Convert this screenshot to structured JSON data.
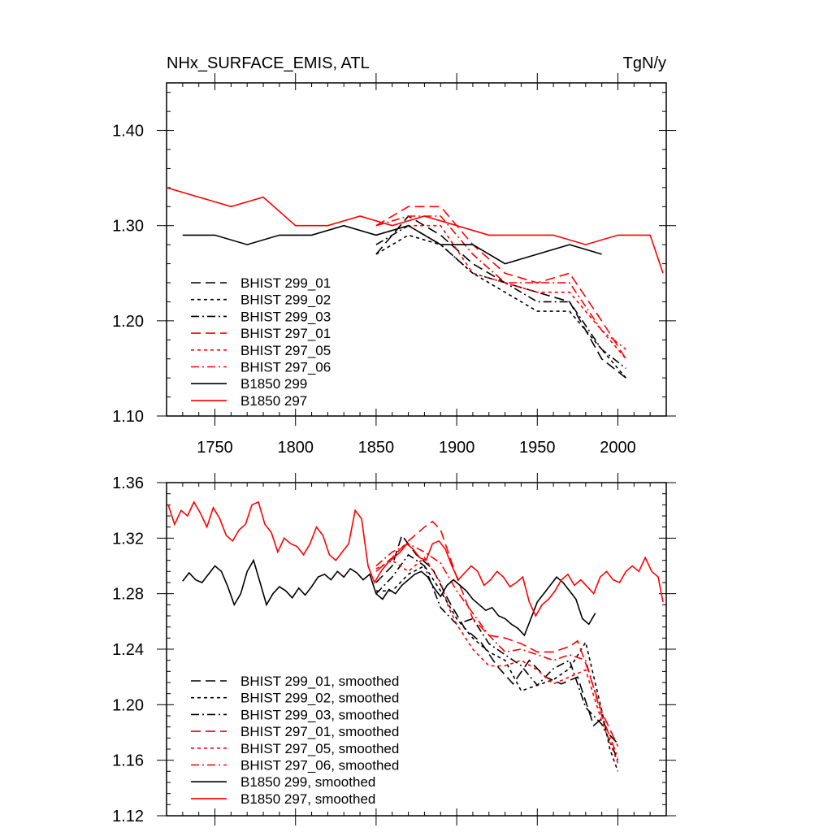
{
  "chart_data": [
    {
      "type": "line",
      "title_left": "NHx_SURFACE_EMIS, ATL",
      "title_right": "TgN/y",
      "xlim": [
        1720,
        2030
      ],
      "ylim": [
        1.1,
        1.45
      ],
      "xticks": [
        1750,
        1800,
        1850,
        1900,
        1950,
        2000
      ],
      "xtick_labels": [
        "1750",
        "1800",
        "1850",
        "1900",
        "1950",
        "2000"
      ],
      "yticks": [
        1.1,
        1.2,
        1.3,
        1.4
      ],
      "ytick_labels": [
        "1.10",
        "1.20",
        "1.30",
        "1.40"
      ],
      "legend": [
        {
          "label": "BHIST 299_01",
          "color": "#000000",
          "dash": "long"
        },
        {
          "label": "BHIST 299_02",
          "color": "#000000",
          "dash": "short"
        },
        {
          "label": "BHIST 299_03",
          "color": "#000000",
          "dash": "dashdot"
        },
        {
          "label": "BHIST 297_01",
          "color": "#ff0000",
          "dash": "long"
        },
        {
          "label": "BHIST 297_05",
          "color": "#ff0000",
          "dash": "short"
        },
        {
          "label": "BHIST 297_06",
          "color": "#ff0000",
          "dash": "dashdot"
        },
        {
          "label": "B1850 299",
          "color": "#000000",
          "dash": "solid"
        },
        {
          "label": "B1850 297",
          "color": "#ff0000",
          "dash": "solid"
        }
      ],
      "series": [
        {
          "name": "BHIST 299_01",
          "color": "#000000",
          "dash": "long",
          "x": [
            1850,
            1870,
            1890,
            1910,
            1930,
            1950,
            1970,
            1990,
            2005
          ],
          "y": [
            1.27,
            1.31,
            1.29,
            1.26,
            1.24,
            1.23,
            1.22,
            1.16,
            1.14
          ]
        },
        {
          "name": "BHIST 299_02",
          "color": "#000000",
          "dash": "short",
          "x": [
            1850,
            1870,
            1890,
            1910,
            1930,
            1950,
            1970,
            1990,
            2005
          ],
          "y": [
            1.27,
            1.29,
            1.28,
            1.25,
            1.23,
            1.21,
            1.21,
            1.17,
            1.14
          ]
        },
        {
          "name": "BHIST 299_03",
          "color": "#000000",
          "dash": "dashdot",
          "x": [
            1850,
            1870,
            1890,
            1910,
            1930,
            1950,
            1970,
            1990,
            2005
          ],
          "y": [
            1.28,
            1.3,
            1.28,
            1.25,
            1.24,
            1.22,
            1.22,
            1.17,
            1.15
          ]
        },
        {
          "name": "BHIST 297_01",
          "color": "#ff0000",
          "dash": "long",
          "x": [
            1850,
            1870,
            1890,
            1910,
            1930,
            1950,
            1970,
            1990,
            2005
          ],
          "y": [
            1.3,
            1.32,
            1.32,
            1.28,
            1.25,
            1.24,
            1.25,
            1.2,
            1.16
          ]
        },
        {
          "name": "BHIST 297_05",
          "color": "#ff0000",
          "dash": "short",
          "x": [
            1850,
            1870,
            1890,
            1910,
            1930,
            1950,
            1970,
            1990,
            2005
          ],
          "y": [
            1.29,
            1.3,
            1.3,
            1.25,
            1.24,
            1.23,
            1.23,
            1.19,
            1.16
          ]
        },
        {
          "name": "BHIST 297_06",
          "color": "#ff0000",
          "dash": "dashdot",
          "x": [
            1850,
            1870,
            1890,
            1910,
            1930,
            1950,
            1970,
            1990,
            2005
          ],
          "y": [
            1.3,
            1.31,
            1.31,
            1.27,
            1.24,
            1.24,
            1.24,
            1.19,
            1.17
          ]
        },
        {
          "name": "B1850 299",
          "color": "#000000",
          "dash": "solid",
          "x": [
            1730,
            1750,
            1770,
            1790,
            1810,
            1830,
            1850,
            1870,
            1890,
            1910,
            1930,
            1950,
            1970,
            1990
          ],
          "y": [
            1.29,
            1.29,
            1.28,
            1.29,
            1.29,
            1.3,
            1.29,
            1.3,
            1.28,
            1.28,
            1.26,
            1.27,
            1.28,
            1.27
          ]
        },
        {
          "name": "B1850 297",
          "color": "#ff0000",
          "dash": "solid",
          "x": [
            1720,
            1740,
            1760,
            1780,
            1800,
            1820,
            1840,
            1860,
            1880,
            1900,
            1920,
            1940,
            1960,
            1980,
            2000,
            2020,
            2028
          ],
          "y": [
            1.34,
            1.33,
            1.32,
            1.33,
            1.3,
            1.3,
            1.31,
            1.3,
            1.31,
            1.3,
            1.29,
            1.29,
            1.29,
            1.28,
            1.29,
            1.29,
            1.25
          ]
        }
      ]
    },
    {
      "type": "line",
      "xlim": [
        1720,
        2030
      ],
      "ylim": [
        1.12,
        1.36
      ],
      "xticks": [
        1750,
        1800,
        1850,
        1900,
        1950,
        2000
      ],
      "yticks": [
        1.12,
        1.16,
        1.2,
        1.24,
        1.28,
        1.32,
        1.36
      ],
      "ytick_labels": [
        "1.12",
        "1.16",
        "1.20",
        "1.24",
        "1.28",
        "1.32",
        "1.36"
      ],
      "legend": [
        {
          "label": "BHIST 299_01, smoothed",
          "color": "#000000",
          "dash": "long"
        },
        {
          "label": "BHIST 299_02, smoothed",
          "color": "#000000",
          "dash": "short"
        },
        {
          "label": "BHIST 299_03, smoothed",
          "color": "#000000",
          "dash": "dashdot"
        },
        {
          "label": "BHIST 297_01, smoothed",
          "color": "#ff0000",
          "dash": "long"
        },
        {
          "label": "BHIST 297_05, smoothed",
          "color": "#ff0000",
          "dash": "short"
        },
        {
          "label": "BHIST 297_06, smoothed",
          "color": "#ff0000",
          "dash": "dashdot"
        },
        {
          "label": "B1850 299, smoothed",
          "color": "#000000",
          "dash": "solid"
        },
        {
          "label": "B1850 297, smoothed",
          "color": "#ff0000",
          "dash": "solid"
        }
      ],
      "series": [
        {
          "name": "BHIST 299_01, smoothed",
          "color": "#000000",
          "dash": "long",
          "x": [
            1850,
            1860,
            1866,
            1875,
            1885,
            1895,
            1905,
            1915,
            1925,
            1935,
            1945,
            1955,
            1965,
            1975,
            1985,
            1990,
            1995,
            2000
          ],
          "y": [
            1.288,
            1.3,
            1.322,
            1.308,
            1.298,
            1.275,
            1.255,
            1.245,
            1.228,
            1.215,
            1.232,
            1.22,
            1.215,
            1.22,
            1.185,
            1.19,
            1.178,
            1.172
          ]
        },
        {
          "name": "BHIST 299_02, smoothed",
          "color": "#000000",
          "dash": "short",
          "x": [
            1850,
            1860,
            1870,
            1880,
            1890,
            1900,
            1910,
            1920,
            1930,
            1940,
            1950,
            1960,
            1970,
            1980,
            1990,
            1995,
            2000
          ],
          "y": [
            1.282,
            1.282,
            1.294,
            1.3,
            1.282,
            1.262,
            1.248,
            1.238,
            1.232,
            1.21,
            1.214,
            1.218,
            1.226,
            1.245,
            1.196,
            1.168,
            1.152
          ]
        },
        {
          "name": "BHIST 299_03, smoothed",
          "color": "#000000",
          "dash": "dashdot",
          "x": [
            1850,
            1860,
            1870,
            1880,
            1890,
            1900,
            1910,
            1920,
            1930,
            1940,
            1950,
            1960,
            1970,
            1980,
            1990,
            1995,
            2000
          ],
          "y": [
            1.28,
            1.292,
            1.308,
            1.3,
            1.27,
            1.258,
            1.262,
            1.244,
            1.236,
            1.228,
            1.214,
            1.226,
            1.232,
            1.198,
            1.186,
            1.174,
            1.16
          ]
        },
        {
          "name": "BHIST 297_01, smoothed",
          "color": "#ff0000",
          "dash": "long",
          "x": [
            1850,
            1860,
            1870,
            1880,
            1885,
            1890,
            1900,
            1910,
            1920,
            1930,
            1940,
            1950,
            1960,
            1970,
            1975,
            1980,
            1990,
            2000
          ],
          "y": [
            1.296,
            1.306,
            1.318,
            1.328,
            1.332,
            1.326,
            1.292,
            1.262,
            1.25,
            1.248,
            1.244,
            1.238,
            1.238,
            1.242,
            1.246,
            1.23,
            1.195,
            1.17
          ]
        },
        {
          "name": "BHIST 297_05, smoothed",
          "color": "#ff0000",
          "dash": "short",
          "x": [
            1850,
            1860,
            1870,
            1880,
            1890,
            1895,
            1900,
            1910,
            1920,
            1930,
            1940,
            1950,
            1960,
            1970,
            1980,
            1990,
            2000
          ],
          "y": [
            1.298,
            1.304,
            1.296,
            1.306,
            1.288,
            1.27,
            1.258,
            1.24,
            1.228,
            1.228,
            1.232,
            1.225,
            1.215,
            1.22,
            1.225,
            1.188,
            1.158
          ]
        },
        {
          "name": "BHIST 297_06, smoothed",
          "color": "#ff0000",
          "dash": "dashdot",
          "x": [
            1850,
            1860,
            1870,
            1880,
            1890,
            1900,
            1910,
            1920,
            1930,
            1940,
            1950,
            1960,
            1970,
            1980,
            1990,
            2000
          ],
          "y": [
            1.3,
            1.31,
            1.316,
            1.31,
            1.302,
            1.282,
            1.266,
            1.25,
            1.238,
            1.24,
            1.236,
            1.232,
            1.236,
            1.232,
            1.192,
            1.162
          ]
        },
        {
          "name": "B1850 299, smoothed",
          "color": "#000000",
          "dash": "solid",
          "x": [
            1730,
            1734,
            1738,
            1742,
            1746,
            1750,
            1754,
            1758,
            1762,
            1766,
            1770,
            1774,
            1778,
            1782,
            1786,
            1790,
            1794,
            1798,
            1802,
            1806,
            1810,
            1814,
            1818,
            1822,
            1826,
            1830,
            1834,
            1838,
            1842,
            1846,
            1850,
            1854,
            1858,
            1862,
            1866,
            1870,
            1874,
            1878,
            1882,
            1886,
            1890,
            1894,
            1898,
            1902,
            1906,
            1910,
            1914,
            1918,
            1922,
            1926,
            1930,
            1934,
            1938,
            1942,
            1946,
            1950,
            1954,
            1958,
            1962,
            1966,
            1970,
            1974,
            1978,
            1982,
            1986
          ],
          "y": [
            1.289,
            1.295,
            1.29,
            1.288,
            1.294,
            1.3,
            1.296,
            1.285,
            1.272,
            1.28,
            1.296,
            1.304,
            1.288,
            1.272,
            1.28,
            1.285,
            1.282,
            1.277,
            1.284,
            1.279,
            1.285,
            1.292,
            1.294,
            1.29,
            1.296,
            1.292,
            1.298,
            1.295,
            1.29,
            1.294,
            1.28,
            1.276,
            1.283,
            1.28,
            1.286,
            1.29,
            1.294,
            1.296,
            1.292,
            1.284,
            1.278,
            1.286,
            1.29,
            1.286,
            1.282,
            1.276,
            1.272,
            1.268,
            1.27,
            1.264,
            1.262,
            1.258,
            1.255,
            1.25,
            1.262,
            1.274,
            1.28,
            1.286,
            1.292,
            1.288,
            1.282,
            1.276,
            1.262,
            1.258,
            1.266
          ]
        },
        {
          "name": "B1850 297, smoothed",
          "color": "#ff0000",
          "dash": "solid",
          "x": [
            1721,
            1725,
            1729,
            1733,
            1737,
            1741,
            1745,
            1749,
            1753,
            1757,
            1761,
            1765,
            1769,
            1773,
            1777,
            1781,
            1785,
            1789,
            1793,
            1797,
            1801,
            1805,
            1809,
            1813,
            1817,
            1821,
            1825,
            1829,
            1833,
            1837,
            1841,
            1845,
            1849,
            1853,
            1857,
            1861,
            1865,
            1869,
            1873,
            1877,
            1881,
            1885,
            1889,
            1893,
            1897,
            1901,
            1905,
            1909,
            1913,
            1917,
            1921,
            1925,
            1929,
            1933,
            1937,
            1941,
            1945,
            1949,
            1953,
            1957,
            1961,
            1965,
            1969,
            1973,
            1977,
            1981,
            1985,
            1989,
            1993,
            1997,
            2001,
            2005,
            2009,
            2013,
            2017,
            2021,
            2025,
            2028
          ],
          "y": [
            1.344,
            1.33,
            1.34,
            1.336,
            1.346,
            1.338,
            1.328,
            1.342,
            1.334,
            1.322,
            1.318,
            1.326,
            1.33,
            1.344,
            1.346,
            1.33,
            1.324,
            1.31,
            1.32,
            1.316,
            1.314,
            1.308,
            1.316,
            1.328,
            1.322,
            1.308,
            1.304,
            1.31,
            1.316,
            1.34,
            1.334,
            1.3,
            1.288,
            1.296,
            1.302,
            1.306,
            1.31,
            1.316,
            1.312,
            1.306,
            1.304,
            1.316,
            1.318,
            1.312,
            1.3,
            1.29,
            1.295,
            1.3,
            1.296,
            1.286,
            1.29,
            1.296,
            1.292,
            1.285,
            1.288,
            1.292,
            1.274,
            1.264,
            1.272,
            1.276,
            1.282,
            1.29,
            1.294,
            1.286,
            1.29,
            1.285,
            1.28,
            1.292,
            1.296,
            1.29,
            1.288,
            1.296,
            1.3,
            1.296,
            1.306,
            1.296,
            1.292,
            1.274
          ]
        }
      ]
    }
  ]
}
